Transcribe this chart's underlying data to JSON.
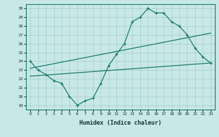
{
  "title": "",
  "xlabel": "Humidex (Indice chaleur)",
  "bg_color": "#c8e8e8",
  "grid_color": "#aad0d0",
  "line_color": "#1a7a6a",
  "xlim": [
    -0.5,
    23.5
  ],
  "ylim": [
    18.5,
    30.5
  ],
  "xticks": [
    0,
    1,
    2,
    3,
    4,
    5,
    6,
    7,
    8,
    9,
    10,
    11,
    12,
    13,
    14,
    15,
    16,
    17,
    18,
    19,
    20,
    21,
    22,
    23
  ],
  "yticks": [
    19,
    20,
    21,
    22,
    23,
    24,
    25,
    26,
    27,
    28,
    29,
    30
  ],
  "curve1_x": [
    0,
    1,
    2,
    3,
    4,
    5,
    6,
    7,
    8,
    9,
    10,
    11,
    12,
    13,
    14,
    15,
    16,
    17,
    18,
    19,
    20,
    21,
    22,
    23
  ],
  "curve1_y": [
    24,
    23,
    22.5,
    21.8,
    21.5,
    20,
    19,
    19.5,
    19.8,
    21.5,
    23.5,
    24.8,
    26,
    28.5,
    29,
    30,
    29.5,
    29.5,
    28.5,
    28,
    27,
    25.5,
    24.5,
    23.8
  ],
  "curve2_x": [
    0,
    23
  ],
  "curve2_y": [
    23.2,
    27.2
  ],
  "curve3_x": [
    0,
    23
  ],
  "curve3_y": [
    22.3,
    23.8
  ]
}
